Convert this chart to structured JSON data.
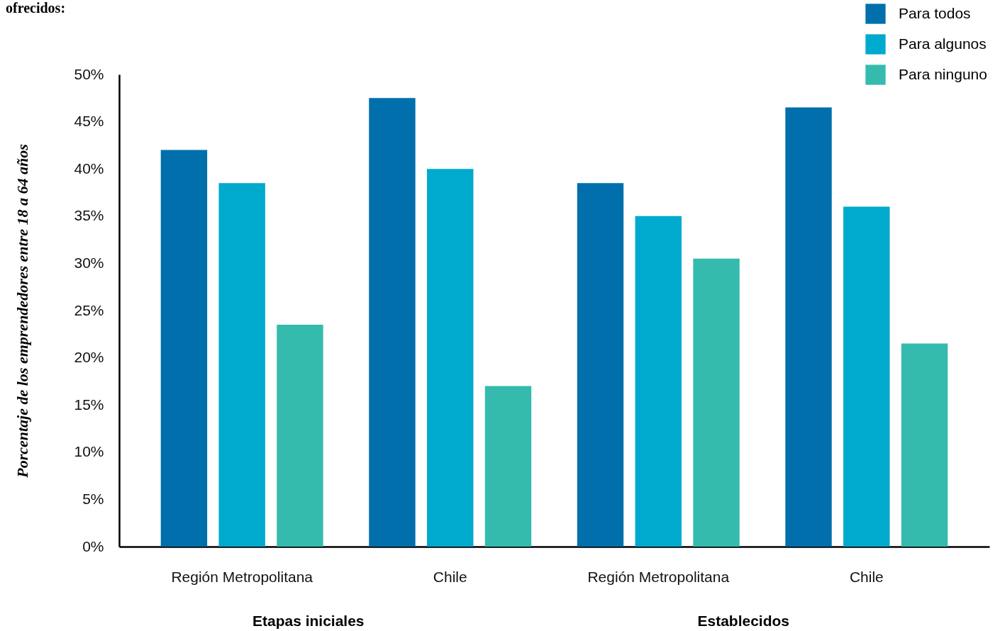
{
  "chart_data": {
    "type": "bar",
    "title": "ofrecidos:",
    "ylabel": "Porcentaje de los emprendedores entre 18 a 64 años",
    "categories": [
      "Región Metropolitana",
      "Chile",
      "Región Metropolitana",
      "Chile"
    ],
    "series": [
      {
        "name": "Para todos",
        "color": "#006fac",
        "values": [
          42,
          47.5,
          38.5,
          46.5
        ]
      },
      {
        "name": "Para algunos",
        "color": "#00a9ce",
        "values": [
          38.5,
          40,
          35,
          36
        ]
      },
      {
        "name": "Para ninguno",
        "color": "#34bbae",
        "values": [
          23.5,
          17,
          30.5,
          21.5
        ]
      }
    ],
    "ylim": [
      0,
      50
    ],
    "yticks": [
      {
        "value": 0,
        "label": "0%"
      },
      {
        "value": 5,
        "label": "5%"
      },
      {
        "value": 10,
        "label": "10%"
      },
      {
        "value": 15,
        "label": "15%"
      },
      {
        "value": 20,
        "label": "20%"
      },
      {
        "value": 25,
        "label": "25%"
      },
      {
        "value": 30,
        "label": "30%"
      },
      {
        "value": 35,
        "label": "35%"
      },
      {
        "value": 40,
        "label": "40%"
      },
      {
        "value": 45,
        "label": "45%"
      },
      {
        "value": 50,
        "label": "50%"
      }
    ],
    "grid": false,
    "legend": "top right",
    "annotations": [
      "Etapas iniciales",
      "Establecidos"
    ]
  }
}
